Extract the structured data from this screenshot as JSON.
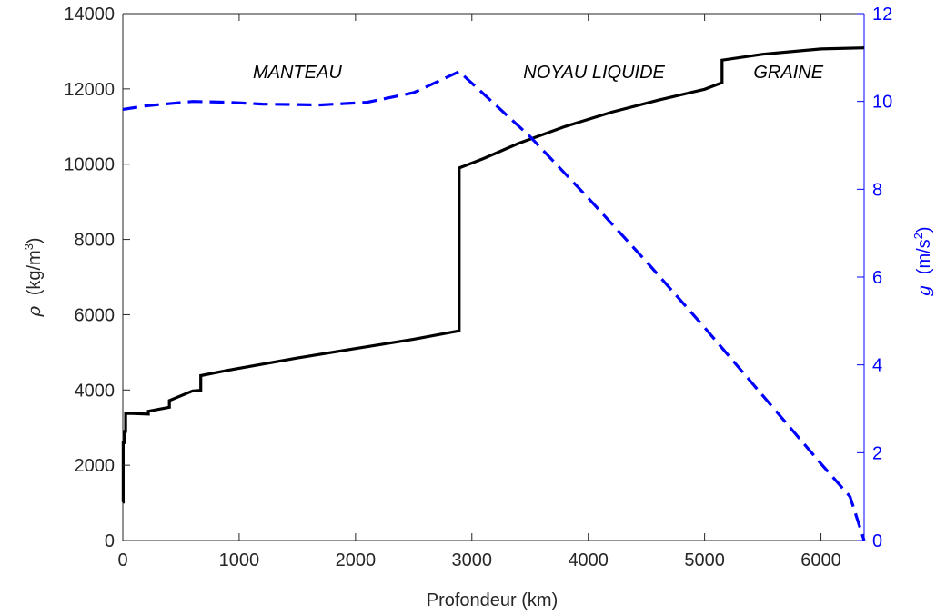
{
  "chart_data": {
    "type": "line",
    "xlabel": "Profondeur (km)",
    "xlim": [
      0,
      6371
    ],
    "xticks": [
      0,
      1000,
      2000,
      3000,
      4000,
      5000,
      6000
    ],
    "ylabel_left": {
      "symbol": "ρ",
      "unit_prefix": "(kg/m",
      "unit_sup": "3",
      "unit_suffix": ")"
    },
    "ylim_left": [
      0,
      14000
    ],
    "yticks_left": [
      0,
      2000,
      4000,
      6000,
      8000,
      10000,
      12000,
      14000
    ],
    "ylabel_right": {
      "symbol": "g",
      "unit_prefix": "(m/s",
      "unit_sup": "2",
      "unit_suffix": ")"
    },
    "ylim_right": [
      0,
      12
    ],
    "yticks_right": [
      0,
      2,
      4,
      6,
      8,
      10,
      12
    ],
    "grid": false,
    "annotations": [
      {
        "text": "MANTEAU",
        "x": 1500,
        "y": 12450
      },
      {
        "text": "NOYAU LIQUIDE",
        "x": 4050,
        "y": 12450
      },
      {
        "text": "GRAINE",
        "x": 5720,
        "y": 12450
      }
    ],
    "series": [
      {
        "axis": "left",
        "style": "solid",
        "color": "#000000",
        "points": [
          [
            0,
            1020
          ],
          [
            3,
            1020
          ],
          [
            3,
            2600
          ],
          [
            15,
            2600
          ],
          [
            15,
            2900
          ],
          [
            24,
            2900
          ],
          [
            24,
            3380
          ],
          [
            80,
            3375
          ],
          [
            220,
            3360
          ],
          [
            220,
            3435
          ],
          [
            400,
            3540
          ],
          [
            400,
            3720
          ],
          [
            600,
            3975
          ],
          [
            670,
            3990
          ],
          [
            670,
            4380
          ],
          [
            900,
            4520
          ],
          [
            1500,
            4850
          ],
          [
            2000,
            5100
          ],
          [
            2500,
            5350
          ],
          [
            2891,
            5570
          ],
          [
            2891,
            9900
          ],
          [
            3100,
            10150
          ],
          [
            3400,
            10550
          ],
          [
            3800,
            11000
          ],
          [
            4200,
            11380
          ],
          [
            4600,
            11700
          ],
          [
            5000,
            11990
          ],
          [
            5150,
            12165
          ],
          [
            5150,
            12765
          ],
          [
            5500,
            12920
          ],
          [
            6000,
            13060
          ],
          [
            6371,
            13090
          ]
        ]
      },
      {
        "axis": "right",
        "style": "dashed",
        "color": "#0000ff",
        "points": [
          [
            0,
            9.82
          ],
          [
            200,
            9.9
          ],
          [
            600,
            10.0
          ],
          [
            900,
            9.98
          ],
          [
            1200,
            9.94
          ],
          [
            1700,
            9.92
          ],
          [
            2100,
            9.98
          ],
          [
            2500,
            10.2
          ],
          [
            2891,
            10.68
          ],
          [
            3500,
            9.2
          ],
          [
            4000,
            7.8
          ],
          [
            4500,
            6.35
          ],
          [
            5000,
            4.85
          ],
          [
            5500,
            3.3
          ],
          [
            6000,
            1.75
          ],
          [
            6250,
            1.0
          ],
          [
            6371,
            0.0
          ]
        ]
      }
    ]
  }
}
